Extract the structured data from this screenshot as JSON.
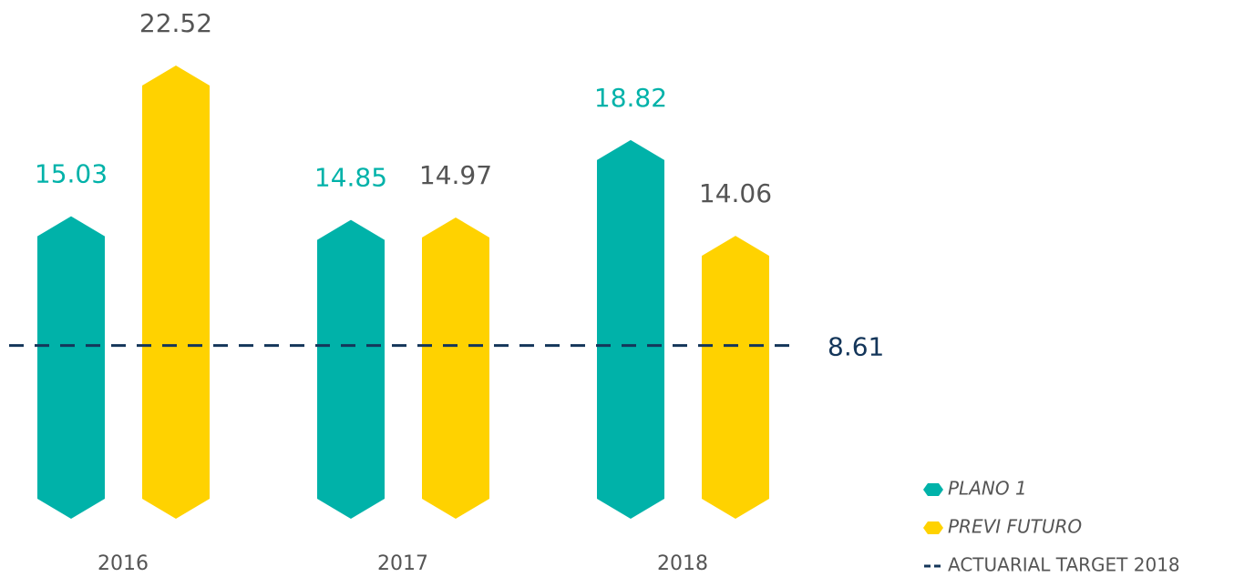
{
  "chart_data": {
    "type": "bar",
    "categories": [
      "2016",
      "2017",
      "2018"
    ],
    "series": [
      {
        "name": "PLANO 1",
        "color": "#00b2a9",
        "values": [
          15.03,
          14.85,
          18.82
        ]
      },
      {
        "name": "PREVI FUTURO",
        "color": "#ffd200",
        "values": [
          22.52,
          14.97,
          14.06
        ]
      }
    ],
    "reference_line": {
      "name": "ACTUARIAL TARGET 2018",
      "value": 8.61,
      "color": "#14365a"
    }
  }
}
